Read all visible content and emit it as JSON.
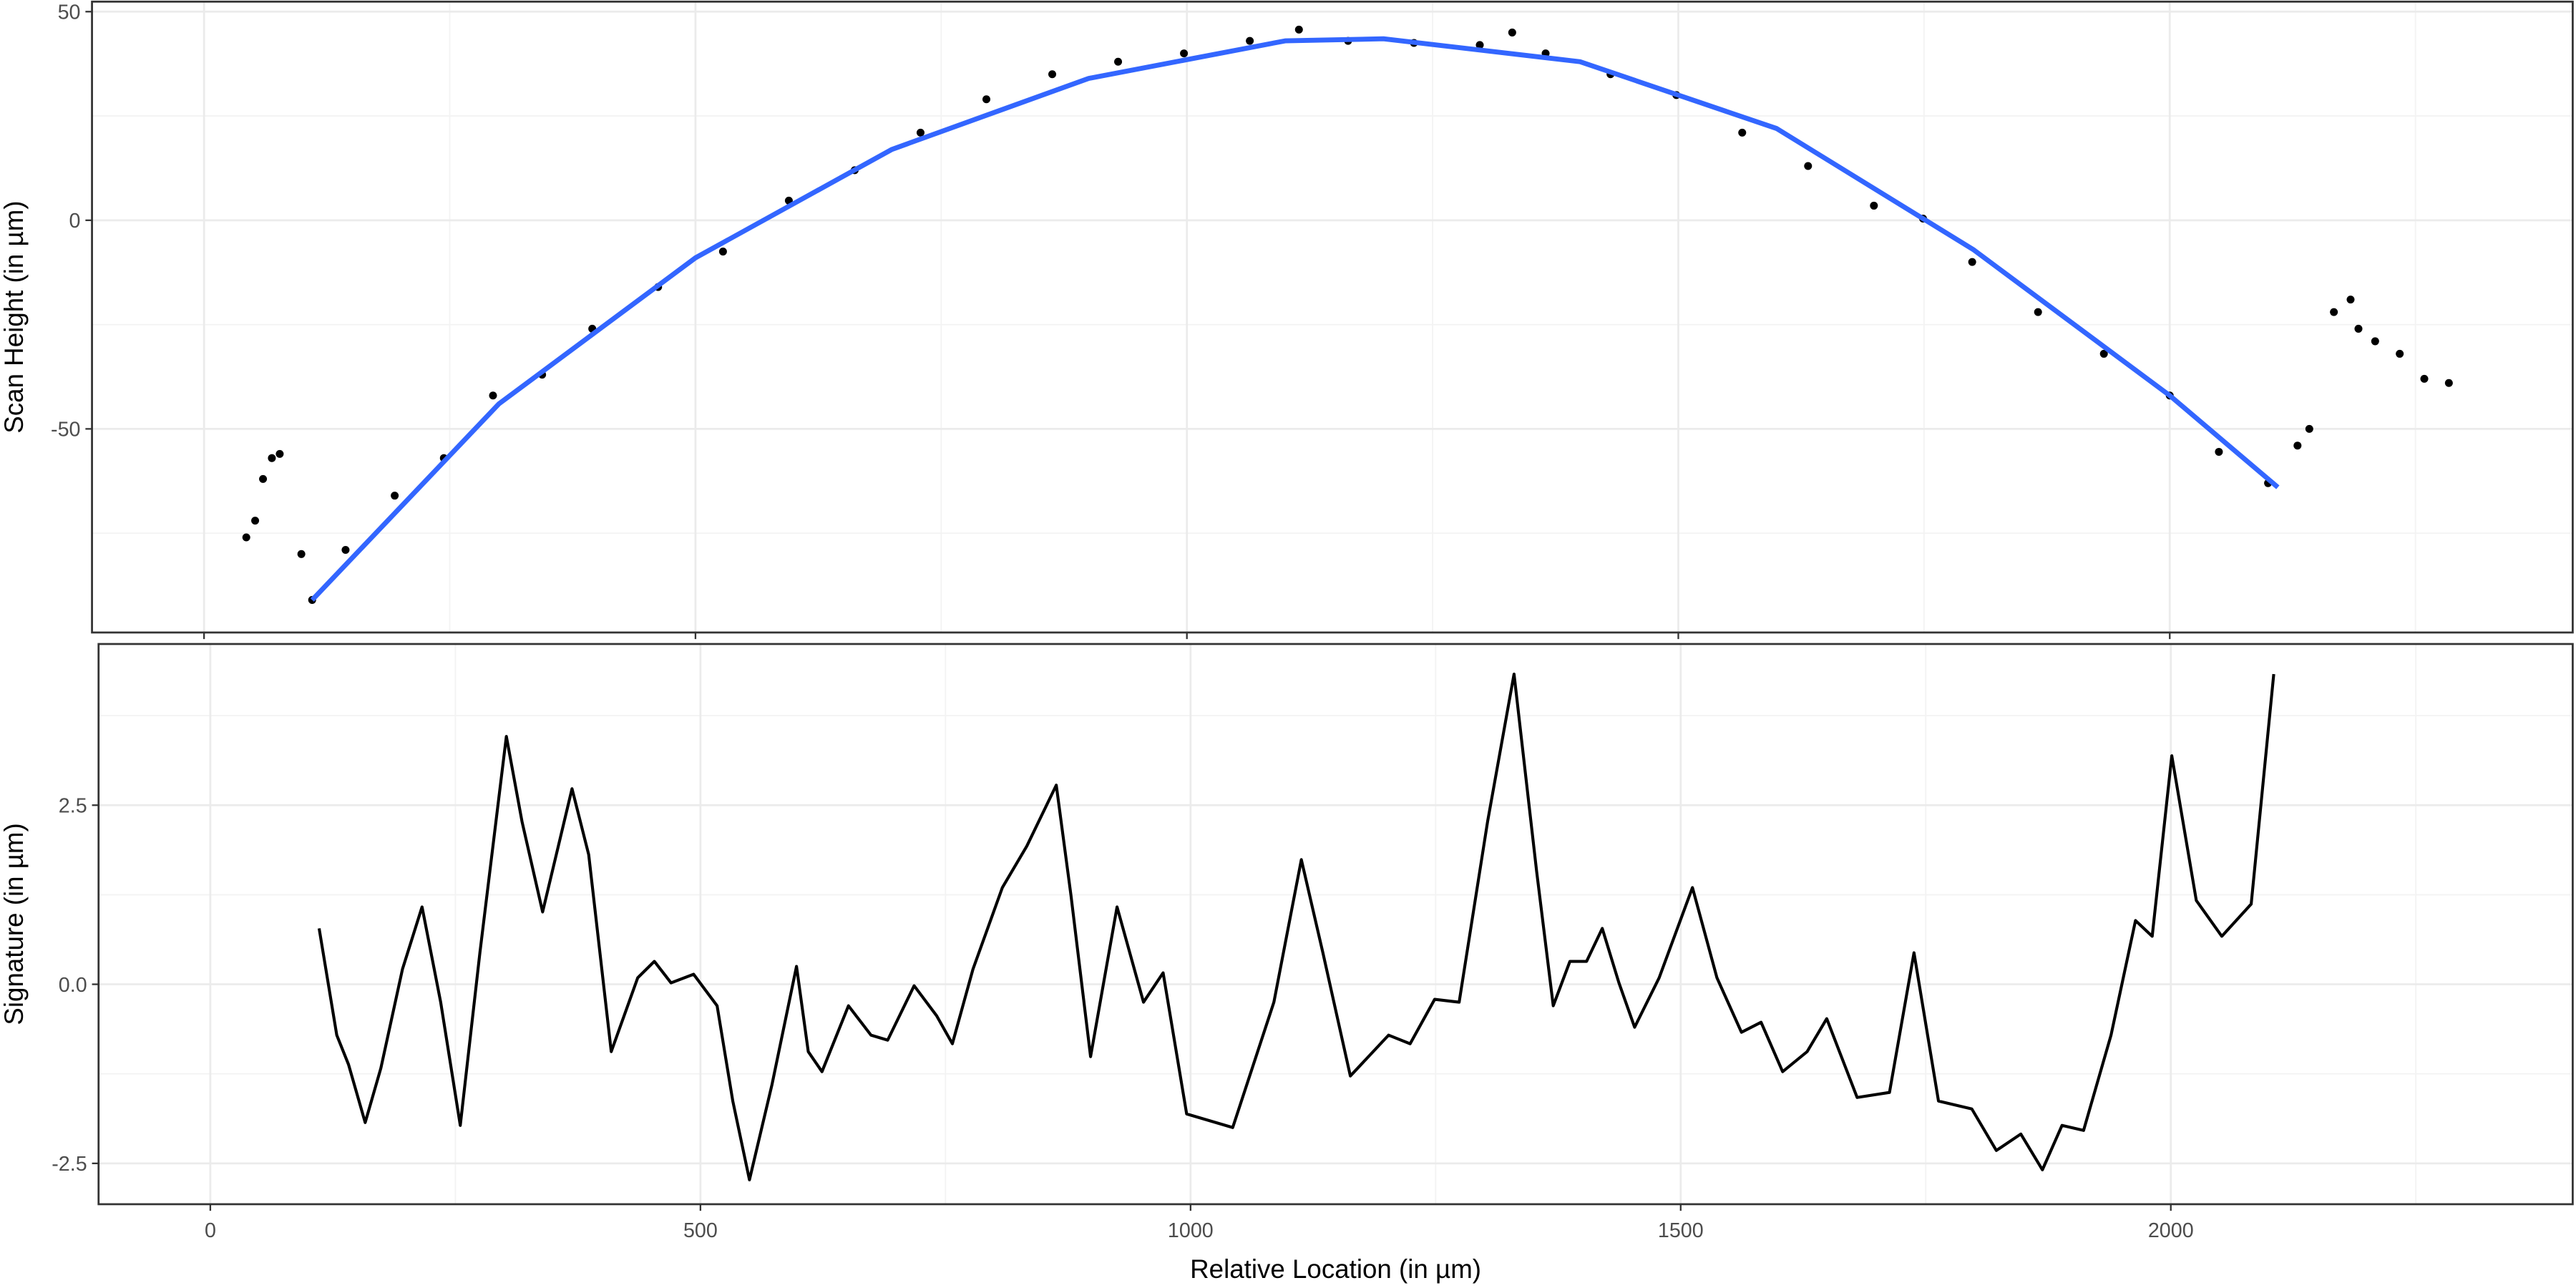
{
  "chart_data": [
    {
      "type": "scatter",
      "y_label": "Scan Height (in µm)",
      "xlim": [
        -114,
        2410
      ],
      "ylim": [
        -98.8,
        52.4
      ],
      "xticks": [
        0,
        500,
        1000,
        1500,
        2000
      ],
      "yticks": [
        50,
        0,
        -50
      ],
      "show_xtick_labels": false,
      "grid": true,
      "minor_grid": true,
      "points": {
        "color": "#000000",
        "x": [
          43,
          52,
          60,
          69,
          77,
          99,
          110,
          144,
          194,
          244,
          294,
          344,
          395,
          462,
          528,
          595,
          662,
          729,
          796,
          863,
          930,
          997,
          1064,
          1114,
          1164,
          1231,
          1298,
          1331,
          1365,
          1431,
          1498,
          1565,
          1632,
          1699,
          1749,
          1799,
          1866,
          1933,
          2000,
          2050,
          2100,
          2130,
          2142,
          2167,
          2184,
          2192,
          2209,
          2234,
          2259,
          2284
        ],
        "y": [
          -76,
          -72,
          -62,
          -57,
          -56,
          -80,
          -91,
          -79,
          -66,
          -57,
          -42,
          -37,
          -26,
          -16,
          -7.5,
          4.7,
          12,
          21,
          29,
          35,
          38,
          40,
          43,
          45.7,
          43,
          42.5,
          42,
          45,
          40,
          35,
          30,
          21,
          13,
          3.5,
          0.4,
          -10,
          -22,
          -32,
          -42,
          -55.5,
          -63,
          -54,
          -50,
          -22,
          -19,
          -26,
          -29,
          -32,
          -38,
          -39
        ]
      },
      "fit": {
        "color": "#3366ff",
        "x": [
          110,
          300,
          500,
          700,
          900,
          1100,
          1200,
          1400,
          1600,
          1800,
          2000,
          2110
        ],
        "y": [
          -91,
          -44,
          -9,
          17,
          34,
          43,
          43.5,
          38,
          22,
          -7,
          -42,
          -64
        ]
      }
    },
    {
      "type": "line",
      "y_label": "Signature (in µm)",
      "x_label": "Relative Location (in µm)",
      "xlim": [
        -114,
        2410
      ],
      "ylim": [
        -3.07,
        4.75
      ],
      "xticks": [
        0,
        500,
        1000,
        1500,
        2000
      ],
      "yticks": [
        2.5,
        {
          "value": 0,
          "label": "0.0"
        },
        -2.5
      ],
      "show_xtick_labels": true,
      "grid": true,
      "minor_grid": true,
      "color": "#000000",
      "x": [
        111,
        129,
        141,
        158,
        174,
        196,
        216,
        235,
        255,
        275,
        302,
        318,
        339,
        369,
        386,
        409,
        436,
        453,
        470,
        493,
        517,
        533,
        550,
        573,
        598,
        610,
        624,
        651,
        674,
        691,
        718,
        741,
        757,
        778,
        808,
        833,
        863,
        878,
        898,
        925,
        952,
        972,
        996,
        1043,
        1085,
        1113,
        1135,
        1163,
        1202,
        1224,
        1249,
        1274,
        1303,
        1330,
        1353,
        1370,
        1387,
        1404,
        1420,
        1437,
        1453,
        1478,
        1512,
        1537,
        1562,
        1582,
        1604,
        1629,
        1649,
        1680,
        1713,
        1738,
        1763,
        1797,
        1822,
        1847,
        1869,
        1889,
        1911,
        1939,
        1964,
        1981,
        2001,
        2026,
        2052,
        2082,
        2105
      ],
      "y": [
        0.78,
        -0.71,
        -1.12,
        -1.93,
        -1.17,
        0.21,
        1.08,
        -0.25,
        -1.97,
        0.44,
        3.46,
        2.27,
        1.01,
        2.73,
        1.81,
        -0.94,
        0.09,
        0.32,
        0.02,
        0.14,
        -0.3,
        -1.63,
        -2.73,
        -1.4,
        0.25,
        -0.94,
        -1.22,
        -0.3,
        -0.71,
        -0.78,
        -0.02,
        -0.44,
        -0.83,
        0.21,
        1.35,
        1.93,
        2.78,
        1.24,
        -1.01,
        1.08,
        -0.25,
        0.16,
        -1.81,
        -2.0,
        -0.25,
        1.74,
        0.44,
        -1.28,
        -0.71,
        -0.83,
        -0.21,
        -0.25,
        2.27,
        4.33,
        1.58,
        -0.3,
        0.32,
        0.32,
        0.78,
        0.02,
        -0.6,
        0.09,
        1.35,
        0.09,
        -0.67,
        -0.53,
        -1.22,
        -0.94,
        -0.48,
        -1.58,
        -1.51,
        0.44,
        -1.63,
        -1.74,
        -2.32,
        -2.09,
        -2.59,
        -1.97,
        -2.04,
        -0.71,
        0.89,
        0.67,
        3.19,
        1.17,
        0.67,
        1.12,
        4.33
      ]
    }
  ]
}
